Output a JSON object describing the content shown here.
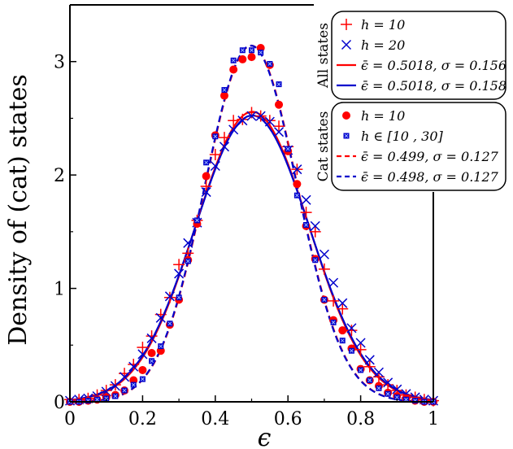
{
  "chart_data": {
    "type": "scatter",
    "title": "",
    "xlabel": "ϵ",
    "ylabel": "Density of (cat) states",
    "xlim": [
      0,
      1
    ],
    "ylim": [
      0,
      3.5
    ],
    "x_ticks": [
      0,
      0.2,
      0.4,
      0.6,
      0.8,
      1
    ],
    "x_tick_labels": [
      "0",
      "0.2",
      "0.4",
      "0.6",
      "0.8",
      "1"
    ],
    "y_ticks": [
      0,
      1,
      2,
      3
    ],
    "y_tick_labels": [
      "0",
      "1",
      "2",
      "3"
    ],
    "legend_groups": [
      {
        "label": "All states",
        "entries": [
          {
            "key": "all_h10",
            "text": "h = 10"
          },
          {
            "key": "all_h20",
            "text": "h = 20"
          },
          {
            "key": "fit_all_red",
            "text": "ϵ̄ = 0.5018, σ = 0.156"
          },
          {
            "key": "fit_all_blue",
            "text": "ϵ̄ = 0.5018, σ = 0.158"
          }
        ]
      },
      {
        "label": "Cat states",
        "entries": [
          {
            "key": "cat_h10",
            "text": "h = 10"
          },
          {
            "key": "cat_h1030",
            "text": "h ∈ [10 , 30]"
          },
          {
            "key": "fit_cat_red",
            "text": "ϵ̄ = 0.499, σ = 0.127"
          },
          {
            "key": "fit_cat_blue",
            "text": "ϵ̄ = 0.498, σ = 0.127"
          }
        ]
      }
    ],
    "series": [
      {
        "key": "all_h10",
        "name": "All states h = 10",
        "marker": "plus",
        "color": "#ff0000",
        "x": [
          0,
          0.025,
          0.05,
          0.075,
          0.1,
          0.125,
          0.15,
          0.175,
          0.2,
          0.225,
          0.25,
          0.275,
          0.3,
          0.325,
          0.35,
          0.375,
          0.4,
          0.425,
          0.45,
          0.475,
          0.5,
          0.525,
          0.55,
          0.575,
          0.6,
          0.625,
          0.65,
          0.675,
          0.7,
          0.725,
          0.75,
          0.775,
          0.8,
          0.825,
          0.85,
          0.875,
          0.9,
          0.925,
          0.95,
          0.975,
          1
        ],
        "y": [
          0.02,
          0.02,
          0.03,
          0.06,
          0.1,
          0.15,
          0.25,
          0.33,
          0.48,
          0.58,
          0.77,
          0.92,
          1.21,
          1.31,
          1.6,
          1.9,
          2.18,
          2.33,
          2.48,
          2.49,
          2.55,
          2.52,
          2.48,
          2.43,
          2.25,
          2.05,
          1.67,
          1.5,
          1.17,
          0.89,
          0.82,
          0.63,
          0.46,
          0.31,
          0.22,
          0.15,
          0.1,
          0.06,
          0.04,
          0.02,
          0.01
        ]
      },
      {
        "key": "all_h20",
        "name": "All states h = 20",
        "marker": "x",
        "color": "#0000cc",
        "x": [
          0,
          0.025,
          0.05,
          0.075,
          0.1,
          0.125,
          0.15,
          0.175,
          0.2,
          0.225,
          0.25,
          0.275,
          0.3,
          0.325,
          0.35,
          0.375,
          0.4,
          0.425,
          0.45,
          0.475,
          0.5,
          0.525,
          0.55,
          0.575,
          0.6,
          0.625,
          0.65,
          0.675,
          0.7,
          0.725,
          0.75,
          0.775,
          0.8,
          0.825,
          0.85,
          0.875,
          0.9,
          0.925,
          0.95,
          0.975,
          1
        ],
        "y": [
          0.01,
          0.02,
          0.03,
          0.05,
          0.09,
          0.14,
          0.22,
          0.31,
          0.42,
          0.56,
          0.74,
          0.93,
          1.13,
          1.4,
          1.58,
          1.85,
          2.08,
          2.25,
          2.4,
          2.48,
          2.52,
          2.52,
          2.47,
          2.38,
          2.22,
          2.05,
          1.78,
          1.55,
          1.3,
          1.05,
          0.87,
          0.65,
          0.52,
          0.37,
          0.26,
          0.17,
          0.11,
          0.07,
          0.04,
          0.02,
          0.01
        ]
      },
      {
        "key": "cat_h10",
        "name": "Cat states h = 10",
        "marker": "circle",
        "color": "#ff0000",
        "x": [
          0,
          0.025,
          0.05,
          0.075,
          0.1,
          0.125,
          0.15,
          0.175,
          0.2,
          0.225,
          0.25,
          0.275,
          0.3,
          0.325,
          0.35,
          0.375,
          0.4,
          0.425,
          0.45,
          0.475,
          0.5,
          0.525,
          0.55,
          0.575,
          0.6,
          0.625,
          0.65,
          0.675,
          0.7,
          0.725,
          0.75,
          0.775,
          0.8,
          0.825,
          0.85,
          0.875,
          0.9,
          0.925,
          0.95,
          0.975,
          1
        ],
        "y": [
          0,
          0,
          0.01,
          0.02,
          0.04,
          0.06,
          0.1,
          0.19,
          0.28,
          0.43,
          0.45,
          0.68,
          0.9,
          1.25,
          1.57,
          1.99,
          2.35,
          2.7,
          2.93,
          3.02,
          3.04,
          3.12,
          2.97,
          2.62,
          2.21,
          1.92,
          1.55,
          1.26,
          0.9,
          0.72,
          0.63,
          0.47,
          0.29,
          0.19,
          0.14,
          0.08,
          0.05,
          0.03,
          0.01,
          0,
          0
        ]
      },
      {
        "key": "cat_h1030",
        "name": "Cat states h in [10, 30]",
        "marker": "square",
        "color": "#0000cc",
        "x": [
          0,
          0.025,
          0.05,
          0.075,
          0.1,
          0.125,
          0.15,
          0.175,
          0.2,
          0.225,
          0.25,
          0.275,
          0.3,
          0.325,
          0.35,
          0.375,
          0.4,
          0.425,
          0.45,
          0.475,
          0.5,
          0.525,
          0.55,
          0.575,
          0.6,
          0.625,
          0.65,
          0.675,
          0.7,
          0.725,
          0.75,
          0.775,
          0.8,
          0.825,
          0.85,
          0.875,
          0.9,
          0.925,
          0.95,
          0.975,
          1
        ],
        "y": [
          0,
          0,
          0.01,
          0.02,
          0.03,
          0.05,
          0.1,
          0.15,
          0.2,
          0.36,
          0.49,
          0.69,
          0.92,
          1.24,
          1.6,
          2.11,
          2.34,
          2.75,
          3.01,
          3.1,
          3.1,
          3.08,
          2.98,
          2.8,
          2.23,
          1.82,
          1.56,
          1.25,
          0.9,
          0.7,
          0.54,
          0.45,
          0.28,
          0.19,
          0.12,
          0.07,
          0.04,
          0.02,
          0.01,
          0,
          0
        ]
      }
    ],
    "fits": [
      {
        "key": "fit_all_red",
        "name": "Fit all states (red)",
        "mean": 0.5018,
        "sigma": 0.156,
        "color": "#ff0000",
        "dash": "solid"
      },
      {
        "key": "fit_all_blue",
        "name": "Fit all states (blue)",
        "mean": 0.5018,
        "sigma": 0.158,
        "color": "#0000cc",
        "dash": "solid"
      },
      {
        "key": "fit_cat_red",
        "name": "Fit cat states (red)",
        "mean": 0.499,
        "sigma": 0.127,
        "color": "#ff0000",
        "dash": "dashed"
      },
      {
        "key": "fit_cat_blue",
        "name": "Fit cat states (blue)",
        "mean": 0.498,
        "sigma": 0.127,
        "color": "#0000cc",
        "dash": "dashed"
      }
    ]
  }
}
